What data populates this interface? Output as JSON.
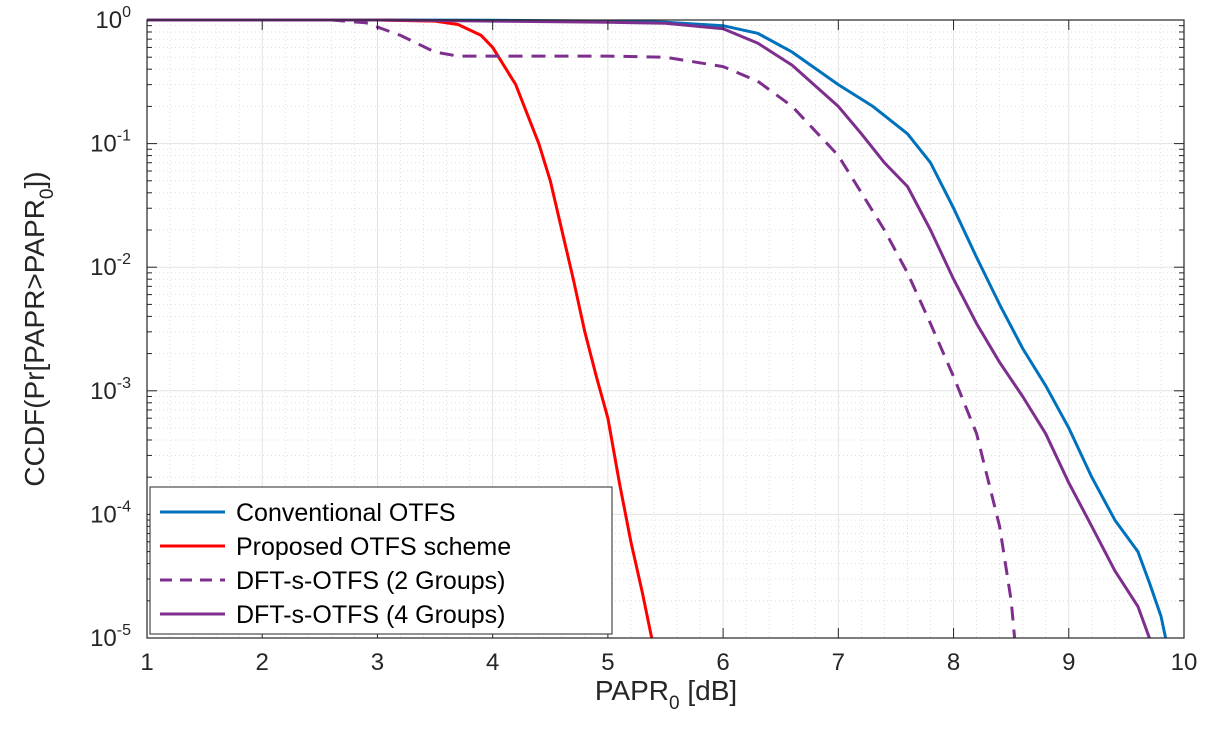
{
  "chart_data": {
    "type": "line",
    "title": "",
    "xlabel": {
      "main": "PAPR",
      "sub": "0",
      "suffix": " [dB]"
    },
    "ylabel": {
      "main": "CCDF(Pr[PAPR>PAPR",
      "sub": "0",
      "suffix": "])"
    },
    "xlim": [
      1,
      10
    ],
    "ylim": [
      1e-05,
      1
    ],
    "yscale": "log",
    "grid": true,
    "legend_location": "bottom-left",
    "x_ticks": [
      1,
      2,
      3,
      4,
      5,
      6,
      7,
      8,
      9,
      10
    ],
    "y_ticks": [
      {
        "value": 1,
        "base": "10",
        "exp": "0"
      },
      {
        "value": 0.1,
        "base": "10",
        "exp": "-1"
      },
      {
        "value": 0.01,
        "base": "10",
        "exp": "-2"
      },
      {
        "value": 0.001,
        "base": "10",
        "exp": "-3"
      },
      {
        "value": 0.0001,
        "base": "10",
        "exp": "-4"
      },
      {
        "value": 1e-05,
        "base": "10",
        "exp": "-5"
      }
    ],
    "series": [
      {
        "name": "Conventional OTFS",
        "color": "#0072BD",
        "dash": "solid",
        "points": [
          [
            1,
            1
          ],
          [
            3,
            1
          ],
          [
            4,
            0.995
          ],
          [
            5,
            0.98
          ],
          [
            5.5,
            0.96
          ],
          [
            6,
            0.9
          ],
          [
            6.3,
            0.78
          ],
          [
            6.6,
            0.55
          ],
          [
            7,
            0.3
          ],
          [
            7.3,
            0.2
          ],
          [
            7.6,
            0.12
          ],
          [
            7.8,
            0.07
          ],
          [
            8,
            0.03
          ],
          [
            8.2,
            0.012
          ],
          [
            8.4,
            0.005
          ],
          [
            8.6,
            0.0022
          ],
          [
            8.8,
            0.0011
          ],
          [
            9,
            0.0005
          ],
          [
            9.2,
            0.0002
          ],
          [
            9.4,
            9e-05
          ],
          [
            9.6,
            5e-05
          ],
          [
            9.7,
            2.8e-05
          ],
          [
            9.8,
            1.5e-05
          ],
          [
            9.84,
            1e-05
          ]
        ]
      },
      {
        "name": "Proposed OTFS scheme",
        "color": "#FF0000",
        "dash": "solid",
        "points": [
          [
            1,
            1
          ],
          [
            3,
            1
          ],
          [
            3.5,
            0.98
          ],
          [
            3.7,
            0.92
          ],
          [
            3.9,
            0.75
          ],
          [
            4,
            0.6
          ],
          [
            4.2,
            0.3
          ],
          [
            4.4,
            0.1
          ],
          [
            4.5,
            0.05
          ],
          [
            4.6,
            0.02
          ],
          [
            4.7,
            0.008
          ],
          [
            4.8,
            0.003
          ],
          [
            4.9,
            0.0013
          ],
          [
            5,
            0.0006
          ],
          [
            5.1,
            0.00018
          ],
          [
            5.2,
            6e-05
          ],
          [
            5.3,
            2.3e-05
          ],
          [
            5.38,
            1e-05
          ]
        ]
      },
      {
        "name": "DFT-s-OTFS (2 Groups)",
        "color": "#7E2F8E",
        "dash": "dashed",
        "points": [
          [
            1,
            1
          ],
          [
            2.6,
            1
          ],
          [
            2.9,
            0.95
          ],
          [
            3.2,
            0.75
          ],
          [
            3.5,
            0.55
          ],
          [
            3.7,
            0.51
          ],
          [
            4,
            0.51
          ],
          [
            5,
            0.51
          ],
          [
            5.5,
            0.5
          ],
          [
            6,
            0.42
          ],
          [
            6.3,
            0.32
          ],
          [
            6.6,
            0.2
          ],
          [
            7,
            0.08
          ],
          [
            7.2,
            0.04
          ],
          [
            7.4,
            0.02
          ],
          [
            7.6,
            0.009
          ],
          [
            7.8,
            0.0035
          ],
          [
            8,
            0.0013
          ],
          [
            8.2,
            0.00045
          ],
          [
            8.4,
            8e-05
          ],
          [
            8.5,
            2e-05
          ],
          [
            8.53,
            1e-05
          ]
        ]
      },
      {
        "name": "DFT-s-OTFS (4 Groups)",
        "color": "#7E2F8E",
        "dash": "solid",
        "points": [
          [
            1,
            1
          ],
          [
            3,
            1
          ],
          [
            4,
            0.98
          ],
          [
            5,
            0.96
          ],
          [
            5.5,
            0.94
          ],
          [
            6,
            0.85
          ],
          [
            6.3,
            0.65
          ],
          [
            6.6,
            0.43
          ],
          [
            7,
            0.2
          ],
          [
            7.2,
            0.12
          ],
          [
            7.4,
            0.07
          ],
          [
            7.6,
            0.045
          ],
          [
            7.8,
            0.02
          ],
          [
            8,
            0.008
          ],
          [
            8.2,
            0.0035
          ],
          [
            8.4,
            0.0017
          ],
          [
            8.6,
            0.0009
          ],
          [
            8.8,
            0.00045
          ],
          [
            9,
            0.00018
          ],
          [
            9.2,
            8e-05
          ],
          [
            9.4,
            3.5e-05
          ],
          [
            9.6,
            1.8e-05
          ],
          [
            9.7,
            1e-05
          ]
        ]
      }
    ]
  }
}
